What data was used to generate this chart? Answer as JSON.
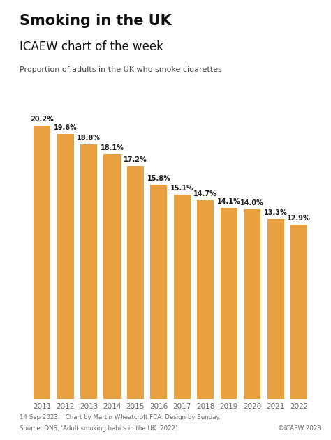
{
  "title": "Smoking in the UK",
  "subtitle": "ICAEW chart of the week",
  "description": "Proportion of adults in the UK who smoke cigarettes",
  "years": [
    2011,
    2012,
    2013,
    2014,
    2015,
    2016,
    2017,
    2018,
    2019,
    2020,
    2021,
    2022
  ],
  "values": [
    20.2,
    19.6,
    18.8,
    18.1,
    17.2,
    15.8,
    15.1,
    14.7,
    14.1,
    14.0,
    13.3,
    12.9
  ],
  "bar_color": "#E8A040",
  "background_color": "#FFFFFF",
  "label_color": "#1a1a1a",
  "footer_left": "14 Sep 2023.   Chart by Martin Wheatcroft FCA. Design by Sunday.",
  "footer_left2": "Source: ONS, ‘Adult smoking habits in the UK: 2022’.",
  "footer_right": "©ICAEW 2023",
  "ylim": [
    0,
    22
  ],
  "bar_width": 0.72
}
